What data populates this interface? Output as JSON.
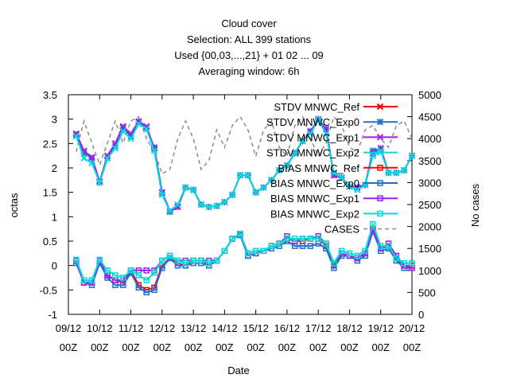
{
  "chart_data": {
    "type": "line",
    "title_lines": [
      "Cloud cover",
      "Selection: ALL    399 stations",
      "Used {00,03,...,21} + 01 02 ... 09",
      "Averaging window:  6h"
    ],
    "xlabel": "Date",
    "ylabel": "octas",
    "y2label": "No cases",
    "ylim": [
      -1,
      3.5
    ],
    "y2lim": [
      0,
      5000
    ],
    "yticks": [
      "-1",
      "-0.5",
      "0",
      "0.5",
      "1",
      "1.5",
      "2",
      "2.5",
      "3",
      "3.5"
    ],
    "y2ticks": [
      "0",
      "500",
      "1000",
      "1500",
      "2000",
      "2500",
      "3000",
      "3500",
      "4000",
      "4500",
      "5000"
    ],
    "xlim": [
      0,
      11
    ],
    "xticks": [
      {
        "date": "09/12",
        "hour": "00Z"
      },
      {
        "date": "10/12",
        "hour": "00Z"
      },
      {
        "date": "11/12",
        "hour": "00Z"
      },
      {
        "date": "12/12",
        "hour": "00Z"
      },
      {
        "date": "13/12",
        "hour": "00Z"
      },
      {
        "date": "14/12",
        "hour": "00Z"
      },
      {
        "date": "15/12",
        "hour": "00Z"
      },
      {
        "date": "16/12",
        "hour": "00Z"
      },
      {
        "date": "17/12",
        "hour": "00Z"
      },
      {
        "date": "18/12",
        "hour": "00Z"
      },
      {
        "date": "19/12",
        "hour": "00Z"
      },
      {
        "date": "20/12",
        "hour": "00Z"
      }
    ],
    "legend_position": "top-right",
    "x": [
      0.25,
      0.5,
      0.75,
      1.0,
      1.25,
      1.5,
      1.75,
      2.0,
      2.25,
      2.5,
      2.75,
      3.0,
      3.25,
      3.5,
      3.75,
      4.0,
      4.25,
      4.5,
      4.75,
      5.0,
      5.25,
      5.5,
      5.75,
      6.0,
      6.25,
      6.5,
      6.75,
      7.0,
      7.25,
      7.5,
      7.75,
      8.0,
      8.25,
      8.5,
      8.75,
      9.0,
      9.25,
      9.5,
      9.75,
      10.0,
      10.25,
      10.5,
      10.75,
      11.0
    ],
    "series": [
      {
        "name": "STDV MNWC_Ref",
        "color": "#ff0000",
        "marker": "x",
        "axis": "y1",
        "dash": false,
        "values": [
          2.7,
          2.35,
          2.2,
          1.72,
          2.25,
          2.5,
          2.85,
          2.7,
          2.95,
          2.85,
          2.4,
          1.5,
          1.12,
          1.2,
          1.6,
          1.55,
          1.25,
          1.2,
          1.22,
          1.3,
          1.45,
          1.85,
          1.85,
          1.5,
          1.6,
          1.75,
          1.95,
          2.05,
          2.3,
          2.55,
          2.75,
          2.98,
          2.8,
          1.85,
          1.8,
          1.62,
          1.6,
          1.65,
          2.3,
          2.4,
          1.9,
          1.9,
          1.95,
          2.25
        ]
      },
      {
        "name": "STDV MNWC_Exp0",
        "color": "#1e6fd0",
        "marker": "star",
        "axis": "y1",
        "dash": false,
        "values": [
          2.68,
          2.3,
          2.2,
          1.7,
          2.2,
          2.45,
          2.82,
          2.65,
          2.95,
          2.8,
          2.42,
          1.5,
          1.1,
          1.2,
          1.6,
          1.55,
          1.25,
          1.2,
          1.22,
          1.3,
          1.45,
          1.85,
          1.85,
          1.5,
          1.6,
          1.75,
          1.95,
          2.05,
          2.3,
          2.55,
          2.75,
          3.0,
          2.8,
          1.85,
          1.8,
          1.62,
          1.6,
          1.65,
          2.35,
          2.4,
          1.9,
          1.9,
          1.95,
          2.25
        ]
      },
      {
        "name": "STDV MNWC_Exp1",
        "color": "#a020f0",
        "marker": "x",
        "axis": "y1",
        "dash": false,
        "values": [
          2.7,
          2.35,
          2.22,
          1.72,
          2.25,
          2.5,
          2.85,
          2.7,
          2.95,
          2.85,
          2.4,
          1.5,
          1.12,
          1.2,
          1.6,
          1.55,
          1.25,
          1.2,
          1.22,
          1.3,
          1.45,
          1.85,
          1.85,
          1.5,
          1.6,
          1.75,
          1.95,
          2.05,
          2.3,
          2.55,
          2.75,
          2.98,
          2.8,
          1.85,
          1.8,
          1.62,
          1.6,
          1.65,
          2.3,
          2.4,
          1.9,
          1.9,
          1.95,
          2.25
        ]
      },
      {
        "name": "STDV MNWC_Exp2",
        "color": "#00dcdc",
        "marker": "x",
        "axis": "y1",
        "dash": false,
        "values": [
          2.65,
          2.2,
          2.1,
          1.7,
          2.2,
          2.4,
          2.75,
          2.6,
          2.9,
          2.8,
          2.35,
          1.45,
          1.12,
          1.25,
          1.6,
          1.55,
          1.25,
          1.2,
          1.22,
          1.3,
          1.45,
          1.85,
          1.85,
          1.5,
          1.6,
          1.75,
          1.95,
          2.05,
          2.3,
          2.55,
          2.7,
          2.98,
          2.7,
          1.9,
          1.8,
          1.62,
          1.55,
          1.65,
          2.25,
          2.35,
          1.9,
          1.9,
          1.95,
          2.25
        ]
      },
      {
        "name": "BIAS MNWC_Ref",
        "color": "#ff0000",
        "marker": "square",
        "axis": "y1",
        "dash": false,
        "values": [
          0.1,
          -0.35,
          -0.35,
          0.1,
          -0.2,
          -0.3,
          -0.35,
          -0.1,
          -0.4,
          -0.5,
          -0.45,
          0.0,
          0.15,
          0.05,
          0.0,
          0.1,
          0.1,
          0.0,
          0.1,
          0.3,
          0.55,
          0.65,
          0.2,
          0.25,
          0.3,
          0.4,
          0.45,
          0.55,
          0.5,
          0.5,
          0.55,
          0.55,
          0.4,
          0.0,
          0.25,
          0.2,
          0.15,
          0.25,
          0.75,
          0.35,
          0.4,
          0.15,
          0.0,
          0.0
        ]
      },
      {
        "name": "BIAS MNWC_Exp0",
        "color": "#1e6fd0",
        "marker": "square",
        "axis": "y1",
        "dash": false,
        "values": [
          0.05,
          -0.35,
          -0.4,
          0.05,
          -0.25,
          -0.4,
          -0.4,
          -0.15,
          -0.45,
          -0.55,
          -0.5,
          -0.05,
          0.15,
          0.0,
          0.0,
          0.05,
          0.05,
          0.0,
          0.1,
          0.3,
          0.55,
          0.62,
          0.2,
          0.25,
          0.3,
          0.35,
          0.4,
          0.5,
          0.4,
          0.4,
          0.4,
          0.45,
          0.35,
          -0.05,
          0.2,
          0.2,
          0.1,
          0.2,
          0.7,
          0.3,
          0.35,
          0.1,
          -0.05,
          -0.05
        ]
      },
      {
        "name": "BIAS MNWC_Exp1",
        "color": "#a020f0",
        "marker": "square",
        "axis": "y1",
        "dash": false,
        "values": [
          0.1,
          -0.35,
          -0.35,
          0.1,
          -0.2,
          -0.3,
          -0.3,
          -0.1,
          -0.1,
          -0.1,
          -0.1,
          0.1,
          0.2,
          0.1,
          0.1,
          0.1,
          0.1,
          0.1,
          0.1,
          0.3,
          0.55,
          0.65,
          0.25,
          0.3,
          0.3,
          0.4,
          0.45,
          0.6,
          0.5,
          0.55,
          0.55,
          0.6,
          0.45,
          0.05,
          0.25,
          0.2,
          0.15,
          0.25,
          0.75,
          0.35,
          0.45,
          0.2,
          0.0,
          -0.05
        ]
      },
      {
        "name": "BIAS MNWC_Exp2",
        "color": "#00dcdc",
        "marker": "square",
        "axis": "y1",
        "dash": false,
        "values": [
          0.12,
          -0.3,
          -0.3,
          0.12,
          -0.1,
          -0.2,
          -0.25,
          -0.1,
          -0.2,
          -0.3,
          -0.15,
          0.1,
          0.2,
          0.1,
          0.05,
          0.1,
          0.1,
          0.05,
          0.1,
          0.3,
          0.55,
          0.65,
          0.25,
          0.3,
          0.3,
          0.4,
          0.45,
          0.55,
          0.55,
          0.55,
          0.55,
          0.55,
          0.45,
          0.05,
          0.3,
          0.25,
          0.2,
          0.3,
          0.85,
          0.4,
          0.4,
          0.15,
          0.05,
          0.05
        ]
      },
      {
        "name": "CASES",
        "color": "#8c8c8c",
        "marker": "none",
        "axis": "y2",
        "dash": true,
        "values": [
          3700,
          4400,
          3900,
          3400,
          3900,
          4400,
          3900,
          4400,
          4500,
          4000,
          3700,
          3200,
          3300,
          4000,
          4400,
          4000,
          3300,
          3500,
          4200,
          3800,
          4300,
          4500,
          4200,
          3600,
          4200,
          4400,
          3800,
          3600,
          4300,
          4500,
          4000,
          3600,
          3900,
          4500,
          4300,
          3800,
          3700,
          4200,
          4300,
          4000,
          3800,
          4300,
          4400,
          4000
        ]
      }
    ]
  }
}
